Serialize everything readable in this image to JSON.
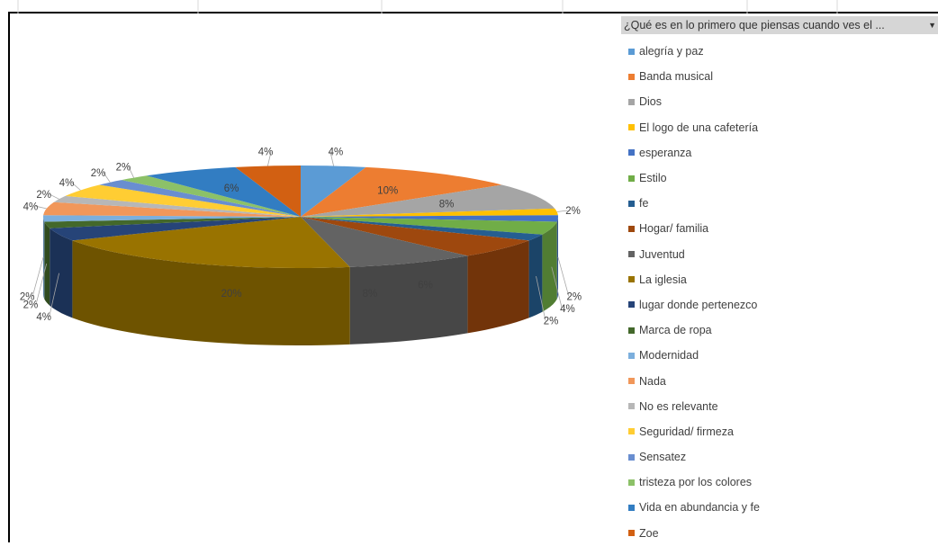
{
  "filter": {
    "label": "¿Qué es en lo primero que piensas cuando ves el ...",
    "arrow": "▼"
  },
  "chart_data": {
    "type": "pie",
    "style": "3d",
    "legend_position": "right",
    "categories": [
      "alegría y paz",
      "Banda musical",
      "Dios",
      "El logo de una cafetería",
      "esperanza",
      "Estilo",
      "fe",
      "Hogar/ familia",
      "Juventud",
      "La iglesia",
      "lugar donde pertenezco",
      "Marca de ropa",
      "Modernidad",
      "Nada",
      "No es relevante",
      "Seguridad/ firmeza",
      "Sensatez",
      "tristeza por los colores",
      "Vida en abundancia y fe",
      "Zoe"
    ],
    "values": [
      4,
      10,
      8,
      2,
      2,
      4,
      2,
      6,
      8,
      20,
      4,
      2,
      2,
      4,
      2,
      4,
      2,
      2,
      6,
      4
    ],
    "value_labels": [
      "4%",
      "10%",
      "8%",
      "2%",
      "2%",
      "4%",
      "2%",
      "6%",
      "8%",
      "20%",
      "4%",
      "2%",
      "2%",
      "4%",
      "2%",
      "4%",
      "2%",
      "2%",
      "6%",
      "4%"
    ],
    "colors": [
      "#5b9bd5",
      "#ed7d31",
      "#a5a5a5",
      "#ffc000",
      "#4472c4",
      "#70ad47",
      "#255e91",
      "#9e480e",
      "#636363",
      "#997300",
      "#264478",
      "#43682b",
      "#7cafdd",
      "#f1975a",
      "#b7b7b7",
      "#ffcd33",
      "#698ed0",
      "#8cc168",
      "#327dc2",
      "#d26012"
    ]
  }
}
